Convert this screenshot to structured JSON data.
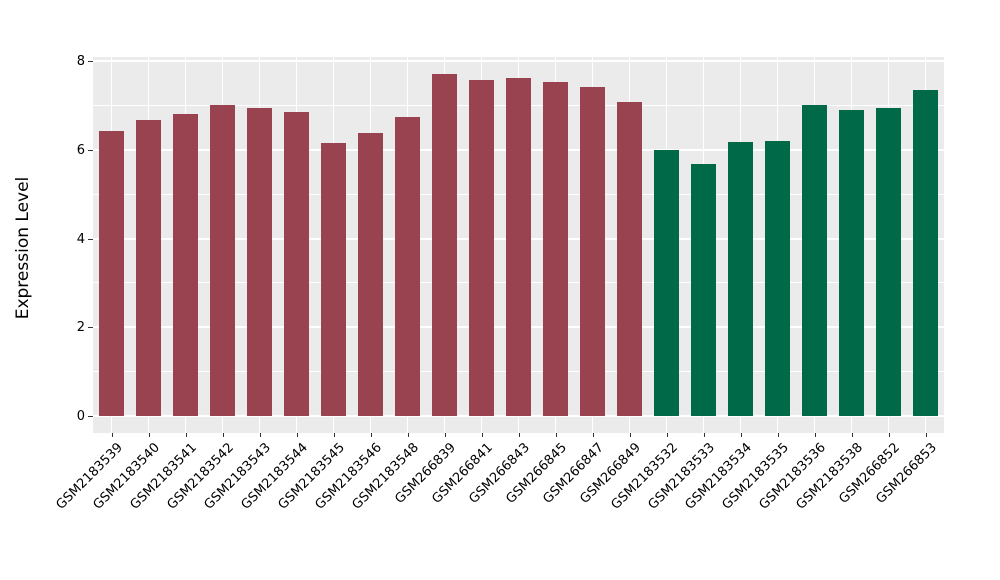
{
  "figure": {
    "background_color": "#FFFFFF",
    "panel_background_color": "#EBEBEB",
    "gridline_color": "#FFFFFF",
    "tick_color": "#333333",
    "text_color": "#000000"
  },
  "chart_data": {
    "type": "bar",
    "title": "",
    "xlabel": "",
    "ylabel": "Expression Level",
    "ylim": [
      0,
      8
    ],
    "yticks": [
      0,
      2,
      4,
      6,
      8
    ],
    "yticks_minor": [
      1,
      3,
      5,
      7
    ],
    "grid": true,
    "legend": false,
    "x_label_angle": 45,
    "categories": [
      "GSM2183539",
      "GSM2183540",
      "GSM2183541",
      "GSM2183542",
      "GSM2183543",
      "GSM2183544",
      "GSM2183545",
      "GSM2183546",
      "GSM2183548",
      "GSM266839",
      "GSM266841",
      "GSM266843",
      "GSM266845",
      "GSM266847",
      "GSM266849",
      "GSM2183532",
      "GSM2183533",
      "GSM2183534",
      "GSM2183535",
      "GSM2183536",
      "GSM2183538",
      "GSM266852",
      "GSM266853"
    ],
    "values": [
      6.42,
      6.67,
      6.81,
      7.01,
      6.94,
      6.84,
      6.16,
      6.38,
      6.73,
      7.7,
      7.58,
      7.62,
      7.53,
      7.42,
      7.07,
      5.99,
      5.69,
      6.17,
      6.2,
      7.0,
      6.9,
      6.95,
      7.34
    ],
    "colors": [
      "#9A4350",
      "#9A4350",
      "#9A4350",
      "#9A4350",
      "#9A4350",
      "#9A4350",
      "#9A4350",
      "#9A4350",
      "#9A4350",
      "#9A4350",
      "#9A4350",
      "#9A4350",
      "#9A4350",
      "#9A4350",
      "#9A4350",
      "#006948",
      "#006948",
      "#006948",
      "#006948",
      "#006948",
      "#006948",
      "#006948",
      "#006948"
    ],
    "group_colors": {
      "group_1_color": "#9A4350",
      "group_1_count": 15,
      "group_2_color": "#006948",
      "group_2_count": 8
    }
  }
}
